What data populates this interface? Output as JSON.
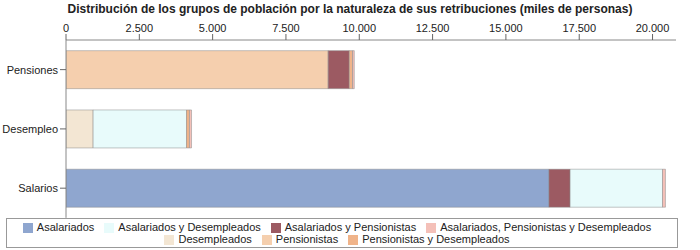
{
  "chart_data": {
    "type": "bar",
    "title": "Distribución de los grupos de población por la naturaleza de sus retribuciones (miles de personas)",
    "orientation": "horizontal",
    "stacked": true,
    "grid": false,
    "legend": "bottom",
    "categories": [
      "Pensiones",
      "Desempleo",
      "Salarios"
    ],
    "series": [
      {
        "name": "Asalariados",
        "color": "#8fa6cf",
        "values": [
          0,
          0,
          16470
        ]
      },
      {
        "name": "Pensionistas",
        "color": "#f5cfae",
        "values": [
          8940,
          0,
          0
        ]
      },
      {
        "name": "Desempleados",
        "color": "#f3e6d3",
        "values": [
          0,
          925,
          0
        ]
      },
      {
        "name": "Asalariados y Pensionistas",
        "color": "#9c5a62",
        "values": [
          720,
          0,
          720
        ]
      },
      {
        "name": "Asalariados y Desempleados",
        "color": "#e8fbfb",
        "values": [
          0,
          3185,
          3150
        ]
      },
      {
        "name": "Pensionistas y Desempleados",
        "color": "#f0b48a",
        "values": [
          110,
          100,
          0
        ]
      },
      {
        "name": "Asalariados, Pensionistas y Desempleados",
        "color": "#f4c0b8",
        "values": [
          60,
          70,
          100
        ]
      }
    ],
    "xlim": [
      0,
      20800
    ],
    "xticks": [
      0,
      {
        "value": 2500,
        "label": "2.500"
      },
      {
        "value": 5000,
        "label": "5.000"
      },
      {
        "value": 7500,
        "label": "7.500"
      },
      {
        "value": 10000,
        "label": "10.000"
      },
      {
        "value": 12500,
        "label": "12.500"
      },
      {
        "value": 15000,
        "label": "15.000"
      },
      {
        "value": 17500,
        "label": "17.500"
      },
      {
        "value": 20000,
        "label": "20.000"
      }
    ]
  }
}
